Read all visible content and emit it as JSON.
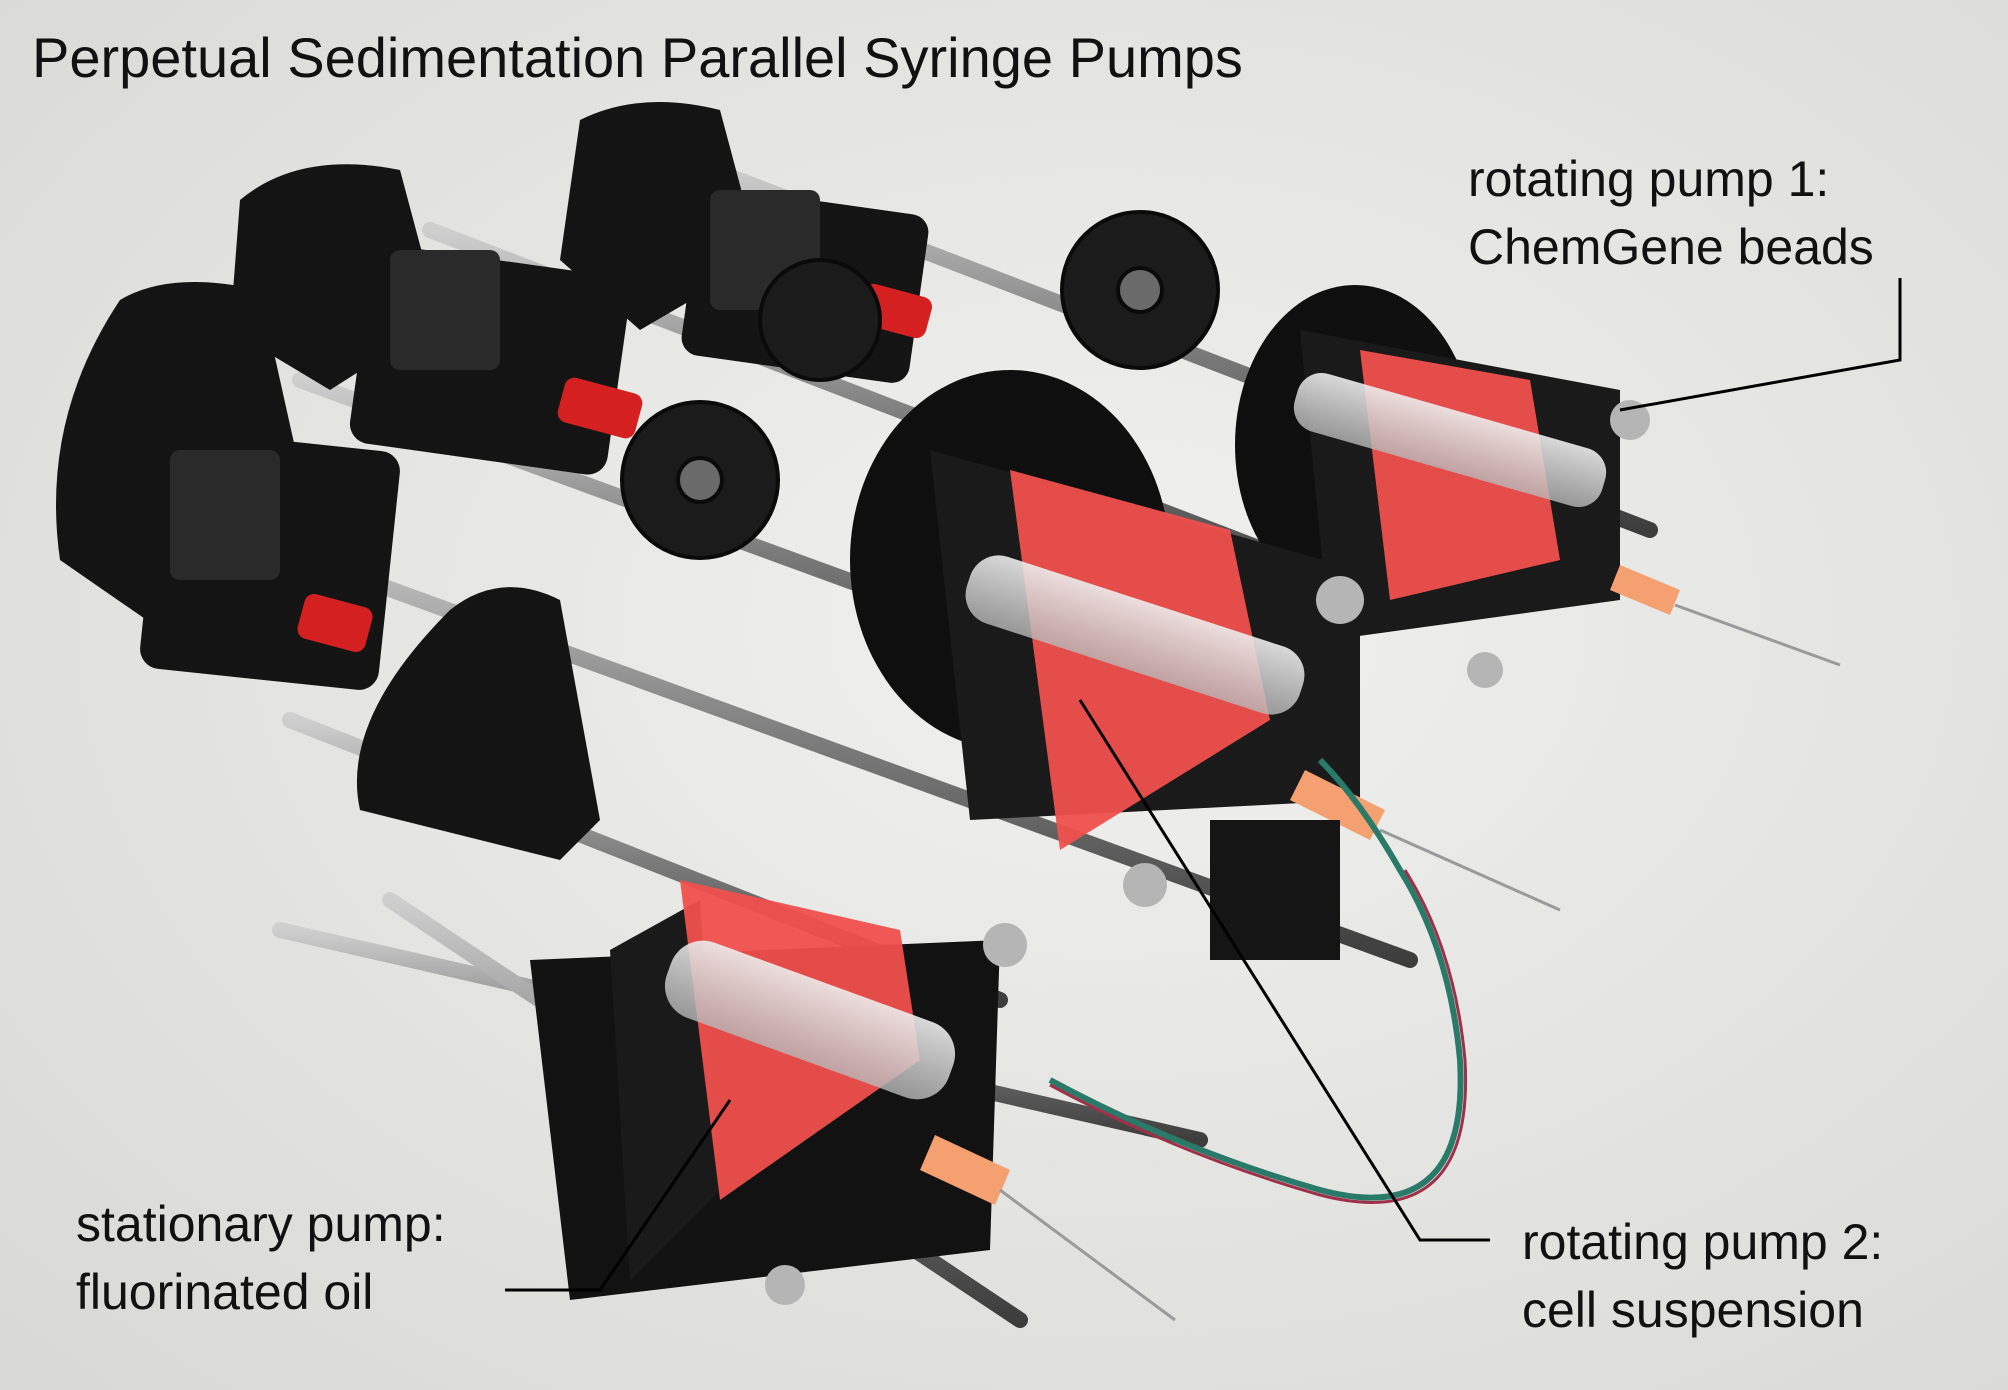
{
  "title": "Perpetual Sedimentation Parallel Syringe Pumps",
  "labels": {
    "pump1_line1": "rotating pump 1:",
    "pump1_line2": "ChemGene beads",
    "pump2_line1": "rotating pump 2:",
    "pump2_line2": "cell suspension",
    "stationary_line1": "stationary pump:",
    "stationary_line2": "fluorinated oil"
  },
  "colors": {
    "background": "#e6e6e4",
    "frame": "#141414",
    "tape": "#f0504e",
    "coupler": "#d42020",
    "needle_hub": "#f4a070",
    "rod": "#8a8a8a"
  }
}
